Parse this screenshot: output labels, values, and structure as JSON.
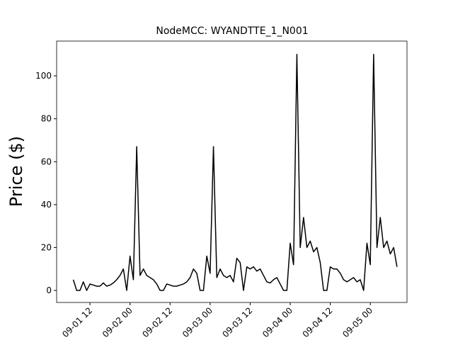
{
  "chart_data": {
    "type": "line",
    "title": "NodeMCC: WYANDTTE_1_N001",
    "ylabel": "Price ($)",
    "x": [
      "09-01 07",
      "09-01 08",
      "09-01 09",
      "09-01 10",
      "09-01 11",
      "09-01 12",
      "09-01 13",
      "09-01 14",
      "09-01 15",
      "09-01 16",
      "09-01 17",
      "09-01 18",
      "09-01 19",
      "09-01 20",
      "09-01 21",
      "09-01 22",
      "09-01 23",
      "09-02 00",
      "09-02 01",
      "09-02 02",
      "09-02 03",
      "09-02 04",
      "09-02 05",
      "09-02 06",
      "09-02 07",
      "09-02 08",
      "09-02 09",
      "09-02 10",
      "09-02 11",
      "09-02 12",
      "09-02 13",
      "09-02 14",
      "09-02 15",
      "09-02 16",
      "09-02 17",
      "09-02 18",
      "09-02 19",
      "09-02 20",
      "09-02 21",
      "09-02 22",
      "09-02 23",
      "09-03 00",
      "09-03 01",
      "09-03 02",
      "09-03 03",
      "09-03 04",
      "09-03 05",
      "09-03 06",
      "09-03 07",
      "09-03 08",
      "09-03 09",
      "09-03 10",
      "09-03 11",
      "09-03 12",
      "09-03 13",
      "09-03 14",
      "09-03 15",
      "09-03 16",
      "09-03 17",
      "09-03 18",
      "09-03 19",
      "09-03 20",
      "09-03 21",
      "09-03 22",
      "09-03 23",
      "09-04 00",
      "09-04 01",
      "09-04 02",
      "09-04 03",
      "09-04 04",
      "09-04 05",
      "09-04 06",
      "09-04 07",
      "09-04 08",
      "09-04 09",
      "09-04 10",
      "09-04 11",
      "09-04 12",
      "09-04 13",
      "09-04 14",
      "09-04 15",
      "09-04 16",
      "09-04 17",
      "09-04 18",
      "09-04 19",
      "09-04 20",
      "09-04 21",
      "09-04 22",
      "09-04 23",
      "09-05 00",
      "09-05 01",
      "09-05 02",
      "09-05 03",
      "09-05 04",
      "09-05 05",
      "09-05 06",
      "09-05 07",
      "09-05 08"
    ],
    "series": [
      {
        "name": "Price",
        "color": "#000000",
        "values": [
          5,
          0,
          0,
          4,
          0,
          3,
          2.5,
          2,
          2,
          3.5,
          2,
          2.5,
          3.5,
          5,
          7,
          10,
          0,
          16,
          5,
          67,
          7,
          10,
          7,
          6,
          5,
          3,
          0,
          0,
          3,
          2.5,
          2,
          2,
          2.5,
          3,
          4,
          6,
          10,
          8,
          0,
          0,
          16,
          8,
          67,
          6,
          10,
          7,
          6,
          7,
          4,
          15,
          13,
          0,
          11,
          10,
          11,
          9,
          10,
          7,
          4,
          3.5,
          5,
          6,
          3,
          0,
          0,
          22,
          12,
          110,
          20,
          34,
          20,
          23,
          18,
          20,
          13,
          0,
          0,
          11,
          10,
          10,
          8,
          5,
          4,
          5,
          6,
          4,
          5,
          0,
          22,
          12,
          110,
          20,
          34,
          20,
          23,
          17,
          20,
          11
        ]
      }
    ],
    "xlim": [
      "09-01 02",
      "09-05 11"
    ],
    "xticks": [
      "09-01 12",
      "09-02 00",
      "09-02 12",
      "09-03 00",
      "09-03 12",
      "09-04 00",
      "09-04 12",
      "09-05 00"
    ],
    "ylim": [
      -5.6,
      116.2
    ],
    "yticks": [
      0,
      20,
      40,
      60,
      80,
      100
    ],
    "grid": false
  }
}
